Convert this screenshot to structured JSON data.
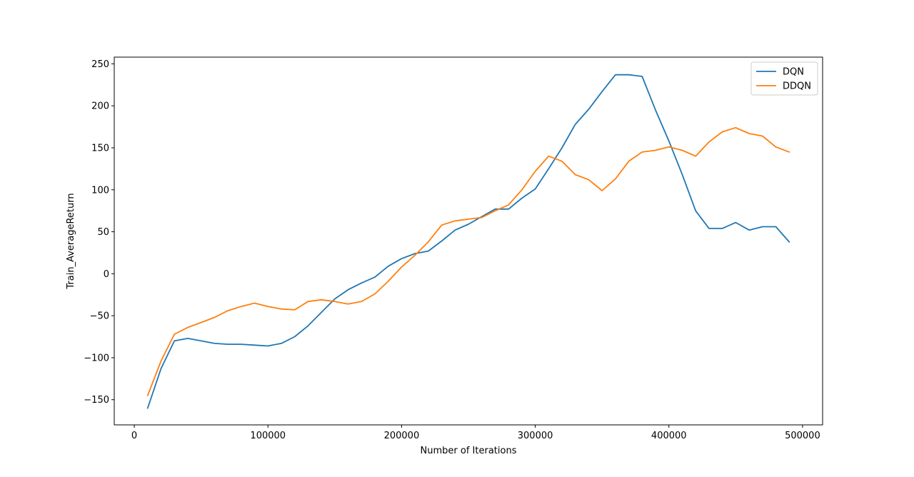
{
  "chart_data": {
    "type": "line",
    "xlabel": "Number of Iterations",
    "ylabel": "Train_AverageReturn",
    "xlim": [
      -15000,
      515000
    ],
    "ylim": [
      -180,
      258
    ],
    "x_ticks": [
      0,
      100000,
      200000,
      300000,
      400000,
      500000
    ],
    "x_tick_labels": [
      "0",
      "100000",
      "200000",
      "300000",
      "400000",
      "500000"
    ],
    "y_ticks": [
      -150,
      -100,
      -50,
      0,
      50,
      100,
      150,
      200,
      250
    ],
    "y_tick_labels": [
      "−150",
      "−100",
      "−50",
      "0",
      "50",
      "100",
      "150",
      "200",
      "250"
    ],
    "grid": false,
    "legend_position": "top-right",
    "x": [
      10000,
      20000,
      30000,
      40000,
      50000,
      60000,
      70000,
      80000,
      90000,
      100000,
      110000,
      120000,
      130000,
      140000,
      150000,
      160000,
      170000,
      180000,
      190000,
      200000,
      210000,
      220000,
      230000,
      240000,
      250000,
      260000,
      270000,
      280000,
      290000,
      300000,
      310000,
      320000,
      330000,
      340000,
      350000,
      360000,
      370000,
      380000,
      390000,
      400000,
      410000,
      420000,
      430000,
      440000,
      450000,
      460000,
      470000,
      480000,
      490000
    ],
    "series": [
      {
        "name": "DQN",
        "color": "#1f77b4",
        "values": [
          -160,
          -113,
          -80,
          -77,
          -80,
          -83,
          -84,
          -84,
          -85,
          -86,
          -83,
          -75,
          -62,
          -46,
          -30,
          -19,
          -11,
          -4,
          9,
          18,
          24,
          27,
          39,
          52,
          59,
          68,
          77,
          77,
          90,
          101,
          125,
          150,
          178,
          196,
          217,
          237,
          237,
          235,
          195,
          158,
          118,
          75,
          54,
          54,
          61,
          52,
          56,
          56,
          38
        ]
      },
      {
        "name": "DDQN",
        "color": "#ff7f0e",
        "values": [
          -145,
          -104,
          -72,
          -64,
          -58,
          -52,
          -44,
          -39,
          -35,
          -39,
          -42,
          -43,
          -33,
          -31,
          -33,
          -36,
          -33,
          -24,
          -9,
          8,
          22,
          38,
          58,
          63,
          65,
          67,
          75,
          82,
          100,
          122,
          140,
          134,
          118,
          112,
          99,
          113,
          134,
          145,
          147,
          151,
          147,
          140,
          157,
          169,
          174,
          167,
          164,
          151,
          145
        ]
      }
    ]
  }
}
